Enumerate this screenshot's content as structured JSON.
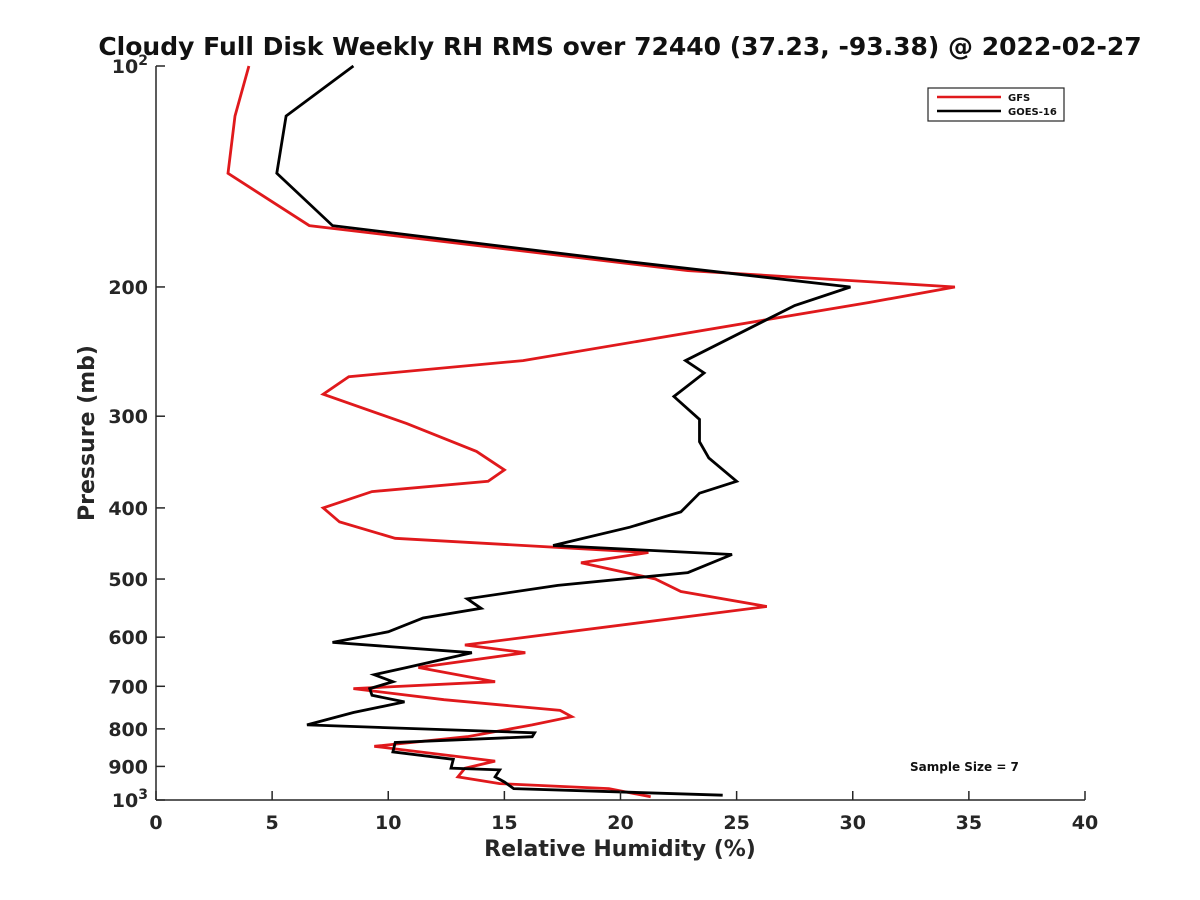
{
  "chart_data": {
    "type": "line",
    "title": "Cloudy Full Disk Weekly RH RMS over 72440 (37.23, -93.38) @ 2022-02-27",
    "xlabel": "Relative Humidity (%)",
    "ylabel": "Pressure (mb)",
    "xlim": [
      0,
      40
    ],
    "ylim": [
      100,
      1000
    ],
    "yscale": "log",
    "y_reversed": true,
    "x_ticks": [
      "0",
      "5",
      "10",
      "15",
      "20",
      "25",
      "30",
      "35",
      "40"
    ],
    "y_ticks": [
      {
        "value": 100,
        "label": "10",
        "sup": "2"
      },
      {
        "value": 200,
        "label": "200",
        "sup": ""
      },
      {
        "value": 300,
        "label": "300",
        "sup": ""
      },
      {
        "value": 400,
        "label": "400",
        "sup": ""
      },
      {
        "value": 500,
        "label": "500",
        "sup": ""
      },
      {
        "value": 600,
        "label": "600",
        "sup": ""
      },
      {
        "value": 700,
        "label": "700",
        "sup": ""
      },
      {
        "value": 800,
        "label": "800",
        "sup": ""
      },
      {
        "value": 900,
        "label": "900",
        "sup": ""
      },
      {
        "value": 1000,
        "label": "10",
        "sup": "3"
      }
    ],
    "grid": false,
    "legend_position": "top-right",
    "annotation": "Sample Size = 7",
    "series": [
      {
        "name": "GFS",
        "color": "#e0191c",
        "x": [
          4.0,
          3.4,
          3.1,
          6.6,
          22.9,
          34.4,
          30.7,
          15.8,
          8.3,
          7.2,
          10.8,
          13.8,
          15.0,
          14.3,
          9.3,
          7.2,
          7.9,
          10.3,
          21.2,
          18.3,
          21.5,
          22.6,
          26.3,
          13.3,
          15.9,
          11.3,
          14.6,
          8.5,
          12.4,
          17.4,
          17.9,
          16.2,
          13.4,
          9.4,
          14.6,
          13.3,
          13.0,
          14.8,
          19.5,
          21.3
        ],
        "y": [
          100,
          117,
          140,
          165,
          190,
          200,
          210,
          252,
          265,
          280,
          307,
          335,
          355,
          368,
          380,
          400,
          418,
          440,
          460,
          475,
          500,
          520,
          545,
          615,
          630,
          660,
          690,
          705,
          730,
          755,
          770,
          790,
          820,
          845,
          885,
          905,
          930,
          950,
          965,
          990
        ]
      },
      {
        "name": "GOES-16",
        "color": "#000000",
        "x": [
          8.5,
          5.6,
          5.2,
          7.6,
          20.5,
          29.9,
          27.5,
          22.8,
          23.6,
          22.3,
          23.4,
          23.4,
          23.8,
          25.0,
          23.4,
          22.6,
          20.4,
          17.1,
          24.8,
          22.9,
          17.3,
          13.4,
          14.0,
          11.5,
          10.0,
          7.6,
          13.6,
          10.8,
          9.4,
          10.2,
          9.2,
          9.3,
          10.7,
          8.5,
          6.5,
          16.3,
          16.2,
          10.3,
          10.2,
          12.8,
          12.7,
          14.8,
          14.6,
          15.0,
          15.4,
          24.4
        ],
        "y": [
          100,
          117,
          140,
          165,
          185,
          200,
          212,
          252,
          262,
          282,
          303,
          325,
          342,
          368,
          382,
          405,
          425,
          450,
          463,
          490,
          510,
          532,
          548,
          565,
          590,
          610,
          630,
          660,
          675,
          690,
          705,
          720,
          735,
          760,
          790,
          810,
          820,
          835,
          860,
          880,
          905,
          910,
          930,
          945,
          965,
          985
        ]
      }
    ]
  }
}
